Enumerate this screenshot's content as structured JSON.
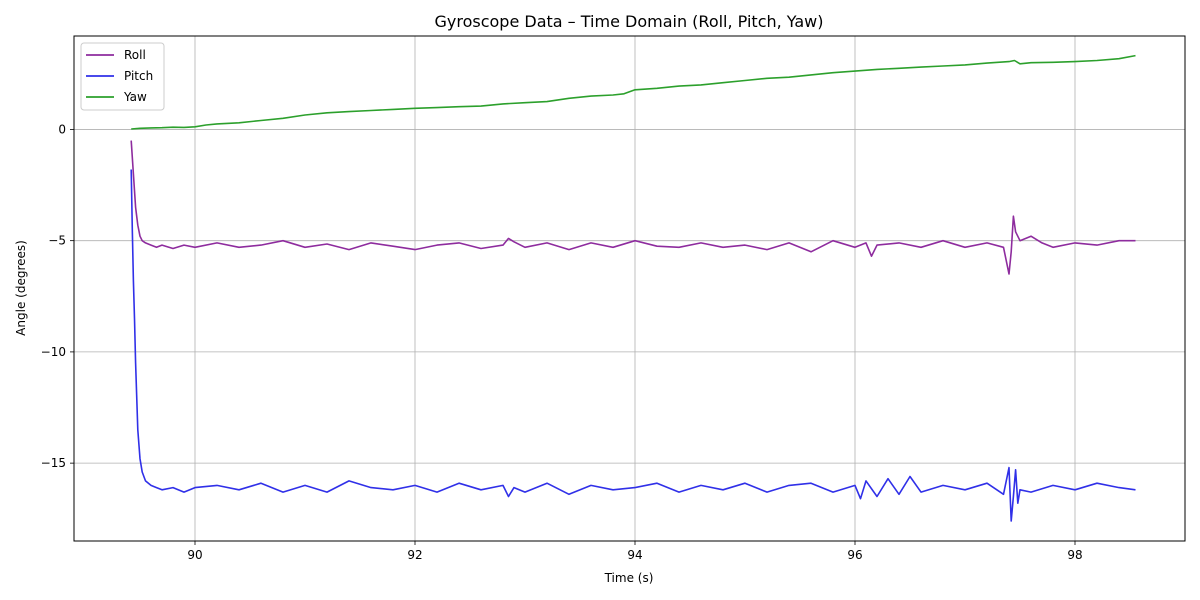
{
  "chart_data": {
    "type": "line",
    "title": "Gyroscope Data – Time Domain (Roll, Pitch, Yaw)",
    "xlabel": "Time (s)",
    "ylabel": "Angle (degrees)",
    "xlim": [
      88.9,
      99.0
    ],
    "ylim": [
      -18.5,
      4.2
    ],
    "xticks": [
      90,
      92,
      94,
      96,
      98
    ],
    "xtick_labels": [
      "90",
      "92",
      "94",
      "96",
      "98"
    ],
    "yticks": [
      0,
      -5,
      -10,
      -15
    ],
    "ytick_labels": [
      "0",
      "−5",
      "−10",
      "−15"
    ],
    "grid": true,
    "legend_position": "top-left",
    "series": [
      {
        "name": "Roll",
        "color": "#8e2c9e",
        "x": [
          89.42,
          89.44,
          89.46,
          89.48,
          89.5,
          89.52,
          89.55,
          89.6,
          89.65,
          89.7,
          89.8,
          89.9,
          90.0,
          90.2,
          90.4,
          90.6,
          90.8,
          91.0,
          91.2,
          91.4,
          91.6,
          91.8,
          92.0,
          92.2,
          92.4,
          92.6,
          92.8,
          92.85,
          92.9,
          93.0,
          93.2,
          93.4,
          93.6,
          93.8,
          94.0,
          94.2,
          94.4,
          94.6,
          94.8,
          95.0,
          95.2,
          95.4,
          95.6,
          95.8,
          96.0,
          96.1,
          96.15,
          96.2,
          96.4,
          96.6,
          96.8,
          97.0,
          97.2,
          97.35,
          97.4,
          97.42,
          97.44,
          97.46,
          97.5,
          97.6,
          97.7,
          97.8,
          98.0,
          98.2,
          98.4,
          98.55
        ],
        "y": [
          -0.5,
          -2.0,
          -3.5,
          -4.3,
          -4.8,
          -5.0,
          -5.1,
          -5.2,
          -5.3,
          -5.2,
          -5.35,
          -5.2,
          -5.3,
          -5.1,
          -5.3,
          -5.2,
          -5.0,
          -5.3,
          -5.15,
          -5.4,
          -5.1,
          -5.25,
          -5.4,
          -5.2,
          -5.1,
          -5.35,
          -5.2,
          -4.9,
          -5.05,
          -5.3,
          -5.1,
          -5.4,
          -5.1,
          -5.3,
          -5.0,
          -5.25,
          -5.3,
          -5.1,
          -5.3,
          -5.2,
          -5.4,
          -5.1,
          -5.5,
          -5.0,
          -5.3,
          -5.1,
          -5.7,
          -5.2,
          -5.1,
          -5.3,
          -5.0,
          -5.3,
          -5.1,
          -5.3,
          -6.5,
          -5.5,
          -3.9,
          -4.6,
          -5.0,
          -4.8,
          -5.1,
          -5.3,
          -5.1,
          -5.2,
          -5.0,
          -5.0
        ]
      },
      {
        "name": "Pitch",
        "color": "#3030e8",
        "x": [
          89.42,
          89.43,
          89.44,
          89.45,
          89.46,
          89.47,
          89.48,
          89.5,
          89.52,
          89.55,
          89.6,
          89.65,
          89.7,
          89.8,
          89.9,
          90.0,
          90.2,
          90.4,
          90.6,
          90.8,
          91.0,
          91.2,
          91.4,
          91.6,
          91.8,
          92.0,
          92.2,
          92.4,
          92.6,
          92.8,
          92.85,
          92.9,
          93.0,
          93.2,
          93.4,
          93.6,
          93.8,
          94.0,
          94.2,
          94.4,
          94.6,
          94.8,
          95.0,
          95.2,
          95.4,
          95.6,
          95.8,
          96.0,
          96.05,
          96.1,
          96.2,
          96.3,
          96.4,
          96.5,
          96.6,
          96.8,
          97.0,
          97.2,
          97.35,
          97.4,
          97.42,
          97.44,
          97.46,
          97.48,
          97.5,
          97.6,
          97.8,
          98.0,
          98.2,
          98.4,
          98.55
        ],
        "y": [
          -1.8,
          -4.5,
          -6.8,
          -8.5,
          -10.5,
          -12.0,
          -13.5,
          -14.8,
          -15.4,
          -15.8,
          -16.0,
          -16.1,
          -16.2,
          -16.1,
          -16.3,
          -16.1,
          -16.0,
          -16.2,
          -15.9,
          -16.3,
          -16.0,
          -16.3,
          -15.8,
          -16.1,
          -16.2,
          -16.0,
          -16.3,
          -15.9,
          -16.2,
          -16.0,
          -16.5,
          -16.1,
          -16.3,
          -15.9,
          -16.4,
          -16.0,
          -16.2,
          -16.1,
          -15.9,
          -16.3,
          -16.0,
          -16.2,
          -15.9,
          -16.3,
          -16.0,
          -15.9,
          -16.3,
          -16.0,
          -16.6,
          -15.8,
          -16.5,
          -15.7,
          -16.4,
          -15.6,
          -16.3,
          -16.0,
          -16.2,
          -15.9,
          -16.4,
          -15.2,
          -17.6,
          -16.5,
          -15.3,
          -16.8,
          -16.2,
          -16.3,
          -16.0,
          -16.2,
          -15.9,
          -16.1,
          -16.2
        ]
      },
      {
        "name": "Yaw",
        "color": "#2ca02c",
        "x": [
          89.42,
          89.5,
          89.6,
          89.7,
          89.8,
          89.9,
          90.0,
          90.1,
          90.2,
          90.4,
          90.6,
          90.8,
          91.0,
          91.2,
          91.4,
          91.6,
          91.8,
          92.0,
          92.2,
          92.4,
          92.6,
          92.8,
          93.0,
          93.2,
          93.4,
          93.6,
          93.8,
          93.9,
          94.0,
          94.2,
          94.4,
          94.6,
          94.8,
          95.0,
          95.2,
          95.4,
          95.6,
          95.8,
          96.0,
          96.2,
          96.4,
          96.6,
          96.8,
          97.0,
          97.2,
          97.4,
          97.45,
          97.5,
          97.6,
          97.8,
          98.0,
          98.2,
          98.4,
          98.55
        ],
        "y": [
          0.02,
          0.05,
          0.07,
          0.08,
          0.1,
          0.09,
          0.12,
          0.2,
          0.25,
          0.3,
          0.4,
          0.5,
          0.65,
          0.75,
          0.8,
          0.85,
          0.9,
          0.95,
          0.98,
          1.02,
          1.05,
          1.15,
          1.2,
          1.25,
          1.4,
          1.5,
          1.55,
          1.6,
          1.78,
          1.85,
          1.95,
          2.0,
          2.1,
          2.2,
          2.3,
          2.35,
          2.45,
          2.55,
          2.62,
          2.7,
          2.75,
          2.8,
          2.85,
          2.9,
          2.98,
          3.05,
          3.1,
          2.95,
          3.0,
          3.02,
          3.05,
          3.1,
          3.18,
          3.32
        ]
      }
    ]
  }
}
